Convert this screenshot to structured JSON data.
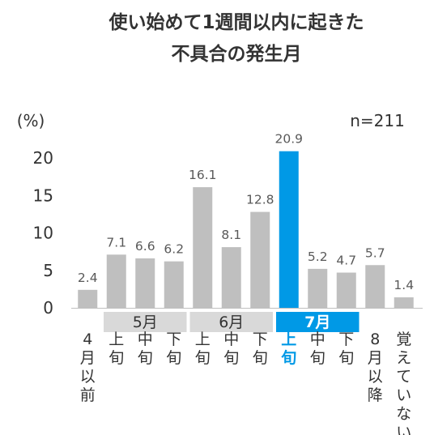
{
  "chart_data": {
    "type": "bar",
    "title_lines": [
      "使い始めて1週間以内に起きた",
      "不具合の発生月"
    ],
    "ylabel": "(%)",
    "n_label": "n=211",
    "ylim": [
      0,
      25
    ],
    "yticks": [
      0,
      5,
      10,
      15,
      20
    ],
    "grid": false,
    "categories": [
      {
        "label": "4月以前",
        "vertical_text": [
          "4",
          "月",
          "以",
          "前"
        ],
        "value": 2.4,
        "value_label": "2.4",
        "highlight": false
      },
      {
        "label": "5月上旬",
        "vertical_text": [
          "上",
          "旬"
        ],
        "value": 7.1,
        "value_label": "7.1",
        "highlight": false
      },
      {
        "label": "5月中旬",
        "vertical_text": [
          "中",
          "旬"
        ],
        "value": 6.6,
        "value_label": "6.6",
        "highlight": false
      },
      {
        "label": "5月下旬",
        "vertical_text": [
          "下",
          "旬"
        ],
        "value": 6.2,
        "value_label": "6.2",
        "highlight": false
      },
      {
        "label": "6月上旬",
        "vertical_text": [
          "上",
          "旬"
        ],
        "value": 16.1,
        "value_label": "16.1",
        "highlight": false
      },
      {
        "label": "6月中旬",
        "vertical_text": [
          "中",
          "旬"
        ],
        "value": 8.1,
        "value_label": "8.1",
        "highlight": false
      },
      {
        "label": "6月下旬",
        "vertical_text": [
          "下",
          "旬"
        ],
        "value": 12.8,
        "value_label": "12.8",
        "highlight": false
      },
      {
        "label": "7月上旬",
        "vertical_text": [
          "上",
          "旬"
        ],
        "value": 20.9,
        "value_label": "20.9",
        "highlight": true
      },
      {
        "label": "7月中旬",
        "vertical_text": [
          "中",
          "旬"
        ],
        "value": 5.2,
        "value_label": "5.2",
        "highlight": false
      },
      {
        "label": "7月下旬",
        "vertical_text": [
          "下",
          "旬"
        ],
        "value": 4.7,
        "value_label": "4.7",
        "highlight": false
      },
      {
        "label": "8月以降",
        "vertical_text": [
          "8",
          "月",
          "以",
          "降"
        ],
        "value": 5.7,
        "value_label": "5.7",
        "highlight": false
      },
      {
        "label": "覚えていない",
        "vertical_text": [
          "覚",
          "え",
          "て",
          "い",
          "な",
          "い"
        ],
        "value": 1.4,
        "value_label": "1.4",
        "highlight": false
      }
    ],
    "month_groups": [
      {
        "label": "5月",
        "first": 1,
        "last": 3,
        "highlight": false
      },
      {
        "label": "6月",
        "first": 4,
        "last": 6,
        "highlight": false
      },
      {
        "label": "7月",
        "first": 7,
        "last": 9,
        "highlight": true
      }
    ],
    "colors": {
      "bar": "#bfbfbf",
      "highlight": "#0099e6",
      "month_box": "#d9d9d9",
      "text": "#333333",
      "value_text": "#595959",
      "highlight_text": "#ffffff",
      "axis": "#bfbfbf"
    }
  }
}
